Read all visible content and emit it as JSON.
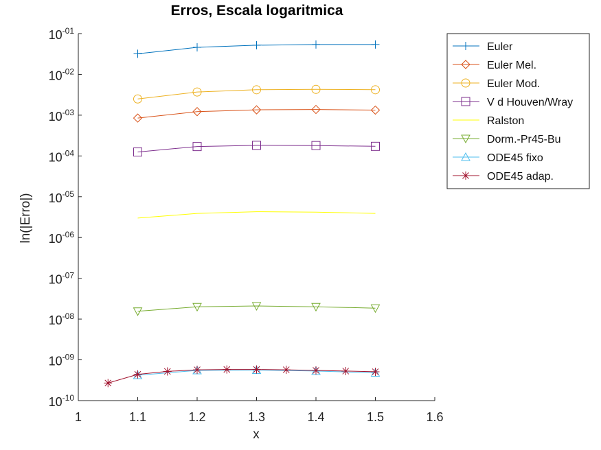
{
  "chart_data": {
    "type": "line",
    "title": "Erros, Escala logaritmica",
    "xlabel": "x",
    "ylabel": "ln(|Erro|)",
    "xlim": [
      1,
      1.6
    ],
    "ylim": [
      1e-10,
      0.1
    ],
    "yscale": "log",
    "grid": false,
    "legend_position": "top-right outside",
    "x_ticks": [
      "1",
      "1.1",
      "1.2",
      "1.3",
      "1.4",
      "1.5",
      "1.6"
    ],
    "y_ticks": [
      {
        "base": "10",
        "exp": "-10"
      },
      {
        "base": "10",
        "exp": "-09"
      },
      {
        "base": "10",
        "exp": "-08"
      },
      {
        "base": "10",
        "exp": "-07"
      },
      {
        "base": "10",
        "exp": "-06"
      },
      {
        "base": "10",
        "exp": "-05"
      },
      {
        "base": "10",
        "exp": "-04"
      },
      {
        "base": "10",
        "exp": "-03"
      },
      {
        "base": "10",
        "exp": "-02"
      },
      {
        "base": "10",
        "exp": "-01"
      }
    ],
    "series": [
      {
        "name": "Euler",
        "color": "#0072bd",
        "marker": "plus",
        "x": [
          1.1,
          1.2,
          1.3,
          1.4,
          1.5
        ],
        "y": [
          0.032,
          0.046,
          0.052,
          0.054,
          0.054
        ]
      },
      {
        "name": "Euler Mel.",
        "color": "#d95319",
        "marker": "diamond",
        "x": [
          1.1,
          1.2,
          1.3,
          1.4,
          1.5
        ],
        "y": [
          0.00085,
          0.00122,
          0.00135,
          0.00138,
          0.00133
        ]
      },
      {
        "name": "Euler Mod.",
        "color": "#edb120",
        "marker": "circle",
        "x": [
          1.1,
          1.2,
          1.3,
          1.4,
          1.5
        ],
        "y": [
          0.0025,
          0.0037,
          0.0042,
          0.0043,
          0.0042
        ]
      },
      {
        "name": "V d Houven/Wray",
        "color": "#7e2f8e",
        "marker": "square",
        "x": [
          1.1,
          1.2,
          1.3,
          1.4,
          1.5
        ],
        "y": [
          0.000125,
          0.00017,
          0.000182,
          0.00018,
          0.000172
        ]
      },
      {
        "name": "Ralston",
        "color": "#ffff00",
        "marker": "none",
        "x": [
          1.1,
          1.2,
          1.3,
          1.4,
          1.5
        ],
        "y": [
          3e-06,
          3.9e-06,
          4.3e-06,
          4.2e-06,
          3.9e-06
        ]
      },
      {
        "name": "Dorm.-Pr45-Bu",
        "color": "#77ac30",
        "marker": "triangle-down",
        "x": [
          1.1,
          1.2,
          1.3,
          1.4,
          1.5
        ],
        "y": [
          1.55e-08,
          2e-08,
          2.1e-08,
          2e-08,
          1.85e-08
        ]
      },
      {
        "name": "ODE45 fixo",
        "color": "#4dbeee",
        "marker": "triangle-up",
        "x": [
          1.1,
          1.2,
          1.3,
          1.4,
          1.5
        ],
        "y": [
          4.2e-10,
          5.5e-10,
          5.6e-10,
          5.3e-10,
          4.8e-10
        ]
      },
      {
        "name": "ODE45 adap.",
        "color": "#a2142f",
        "marker": "asterisk",
        "x": [
          1.05,
          1.1,
          1.15,
          1.2,
          1.25,
          1.3,
          1.35,
          1.4,
          1.45,
          1.5
        ],
        "y": [
          2.7e-10,
          4.4e-10,
          5.2e-10,
          5.7e-10,
          5.8e-10,
          5.8e-10,
          5.7e-10,
          5.5e-10,
          5.3e-10,
          5.1e-10
        ]
      }
    ]
  }
}
